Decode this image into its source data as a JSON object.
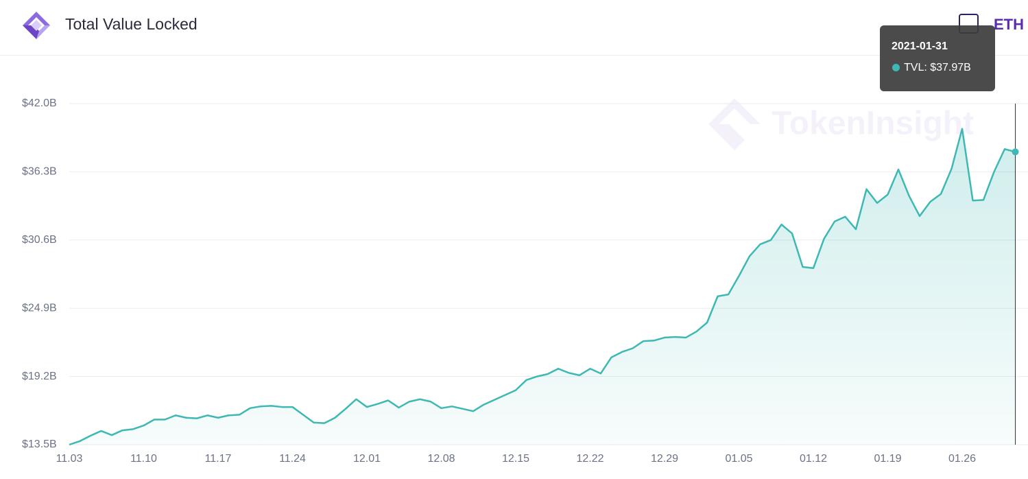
{
  "header": {
    "title": "Total Value Locked",
    "toggle": "ETH"
  },
  "chart_data": {
    "type": "line",
    "watermark": "TokenInsight",
    "categories": [
      "11.03",
      null,
      null,
      null,
      null,
      null,
      null,
      "11.10",
      null,
      null,
      null,
      null,
      null,
      null,
      "11.17",
      null,
      null,
      null,
      null,
      null,
      null,
      "11.24",
      null,
      null,
      null,
      null,
      null,
      null,
      "12.01",
      null,
      null,
      null,
      null,
      null,
      null,
      "12.08",
      null,
      null,
      null,
      null,
      null,
      null,
      "12.15",
      null,
      null,
      null,
      null,
      null,
      null,
      "12.22",
      null,
      null,
      null,
      null,
      null,
      null,
      "12.29",
      null,
      null,
      null,
      null,
      null,
      null,
      "01.05",
      null,
      null,
      null,
      null,
      null,
      null,
      "01.12",
      null,
      null,
      null,
      null,
      null,
      null,
      "01.19",
      null,
      null,
      null,
      null,
      null,
      null,
      "01.26",
      null,
      null,
      null,
      null,
      null
    ],
    "series": [
      {
        "name": "TVL",
        "color": "#3db8b2",
        "values": [
          13.5,
          13.8,
          14.25,
          14.65,
          14.3,
          14.7,
          14.8,
          15.1,
          15.6,
          15.6,
          15.95,
          15.75,
          15.7,
          15.95,
          15.75,
          15.95,
          16.0,
          16.55,
          16.7,
          16.75,
          16.65,
          16.65,
          16.0,
          15.35,
          15.3,
          15.75,
          16.5,
          17.3,
          16.65,
          16.9,
          17.2,
          16.6,
          17.1,
          17.3,
          17.1,
          16.55,
          16.7,
          16.5,
          16.3,
          16.85,
          17.25,
          17.65,
          18.05,
          18.9,
          19.2,
          19.4,
          19.85,
          19.5,
          19.3,
          19.85,
          19.45,
          20.8,
          21.25,
          21.55,
          22.15,
          22.2,
          22.45,
          22.5,
          22.45,
          22.95,
          23.7,
          25.9,
          26.05,
          27.6,
          29.25,
          30.25,
          30.6,
          31.9,
          31.15,
          28.35,
          28.25,
          30.7,
          32.15,
          32.55,
          31.5,
          34.85,
          33.7,
          34.4,
          36.5,
          34.3,
          32.6,
          33.8,
          34.45,
          36.55,
          39.9,
          33.9,
          33.95,
          36.3,
          38.2,
          37.97
        ]
      }
    ],
    "ylim": [
      13.5,
      42.0
    ],
    "yticks": [
      {
        "value": 13.5,
        "label": "$13.5B"
      },
      {
        "value": 19.2,
        "label": "$19.2B"
      },
      {
        "value": 24.9,
        "label": "$24.9B"
      },
      {
        "value": 30.6,
        "label": "$30.6B"
      },
      {
        "value": 36.3,
        "label": "$36.3B"
      },
      {
        "value": 42.0,
        "label": "$42.0B"
      }
    ],
    "grid": true,
    "tooltip": {
      "title": "2021-01-31",
      "label": "TVL: $37.97B"
    }
  }
}
